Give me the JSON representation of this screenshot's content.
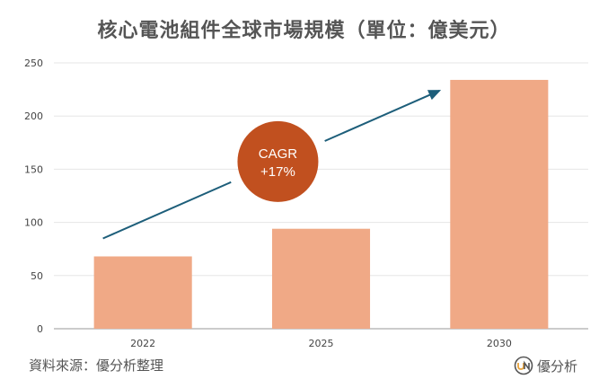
{
  "title": "核心電池組件全球市場規模（單位：億美元）",
  "chart_data": {
    "type": "bar",
    "categories": [
      "2022",
      "2025",
      "2030"
    ],
    "values": [
      68,
      94,
      234
    ],
    "ylim": [
      0,
      250
    ],
    "yticks": [
      0,
      50,
      100,
      150,
      200,
      250
    ],
    "grid": true,
    "bar_color": "#f0a986",
    "annotation": {
      "line1": "CAGR",
      "line2": "+17%",
      "color": "#c1501f",
      "arrow_color": "#1d5e7a"
    }
  },
  "footer": {
    "source": "資料來源：優分析整理",
    "brand": "優分析"
  }
}
